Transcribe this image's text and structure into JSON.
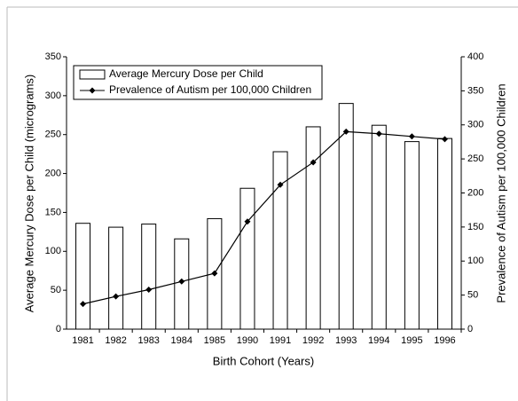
{
  "chart_data": {
    "type": "bar_line",
    "xlabel": "Birth Cohort (Years)",
    "ylabel": "Average Mercury Dose per Child (micrograms)",
    "y2label": "Prevalence of Autism per 100,000 Children",
    "categories": [
      "1981",
      "1982",
      "1983",
      "1984",
      "1985",
      "1990",
      "1991",
      "1992",
      "1993",
      "1994",
      "1995",
      "1996"
    ],
    "series": [
      {
        "name": "Average Mercury Dose per Child",
        "kind": "bar",
        "color": "#ffffff",
        "values": [
          136,
          131,
          135,
          116,
          142,
          181,
          228,
          260,
          290,
          262,
          241,
          245
        ]
      },
      {
        "name": "Prevalence of Autism per 100,000 Children",
        "kind": "line",
        "axis": "y2",
        "color": "#000000",
        "values": [
          37,
          48,
          58,
          70,
          82,
          158,
          212,
          245,
          290,
          287,
          283,
          279
        ]
      }
    ],
    "ylim": [
      0,
      350
    ],
    "yticks": [
      0,
      50,
      100,
      150,
      200,
      250,
      300,
      350
    ],
    "y2lim": [
      0,
      400
    ],
    "y2ticks": [
      0,
      50,
      100,
      150,
      200,
      250,
      300,
      350,
      400
    ],
    "legend": "upper left"
  }
}
